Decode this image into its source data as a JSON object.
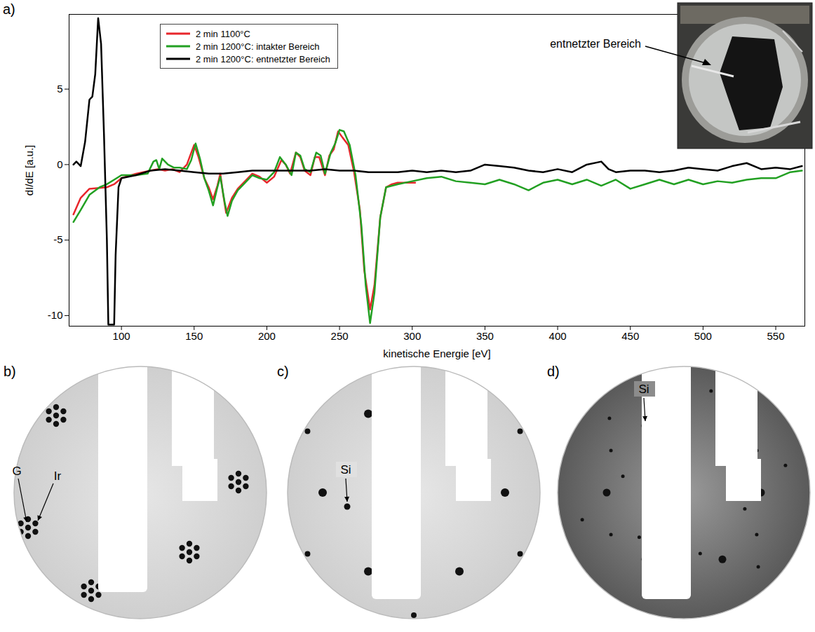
{
  "chart_data": {
    "type": "line",
    "panel": "a)",
    "x_label": "kinetische Energie [eV]",
    "y_label": "dI/dE [a.u.]",
    "xlim": [
      64,
      570
    ],
    "ylim": [
      -10.7,
      9.95
    ],
    "xticks": [
      100,
      150,
      200,
      250,
      300,
      350,
      400,
      450,
      500,
      550
    ],
    "yticks": [
      -10,
      -5,
      0,
      5
    ],
    "grid": false,
    "legend": "top-left",
    "series": [
      {
        "name": "2 min 1100°C",
        "color": "#e8262b",
        "x": [
          67,
          72,
          78,
          90,
          95,
          100,
          110,
          120,
          125,
          130,
          135,
          140,
          145,
          150,
          153,
          157,
          160,
          163,
          166,
          168,
          170,
          172,
          176,
          180,
          185,
          190,
          195,
          200,
          205,
          210,
          213,
          216,
          220,
          223,
          226,
          230,
          233,
          236,
          240,
          243,
          246,
          249,
          252,
          256,
          260,
          264,
          267,
          271,
          274,
          278,
          282,
          286,
          290,
          295,
          302
        ],
        "values": [
          -3.3,
          -2.2,
          -1.6,
          -1.5,
          -1.3,
          -0.9,
          -0.6,
          -0.4,
          -0.3,
          -0.4,
          -0.3,
          -0.5,
          0.0,
          1.3,
          0.5,
          -0.9,
          -1.5,
          -2.3,
          -1.4,
          -0.6,
          -2.0,
          -3.2,
          -2.2,
          -1.6,
          -1.1,
          -0.6,
          -0.8,
          -1.2,
          -0.8,
          0.3,
          0.0,
          -0.6,
          0.8,
          0.5,
          -0.4,
          -0.7,
          0.5,
          0.5,
          -0.7,
          0.6,
          1.0,
          2.2,
          1.8,
          1.3,
          -0.5,
          -3.0,
          -7.0,
          -9.6,
          -8.0,
          -3.5,
          -1.5,
          -1.3,
          -1.2,
          -1.2,
          -1.2
        ]
      },
      {
        "name": "2 min 1200°C: intakter Bereich",
        "color": "#22a022",
        "x": [
          67,
          72,
          78,
          85,
          90,
          95,
          100,
          110,
          118,
          122,
          124,
          126,
          128,
          132,
          136,
          140,
          145,
          148,
          151,
          154,
          157,
          160,
          163,
          166,
          168,
          171,
          173,
          176,
          180,
          185,
          190,
          195,
          200,
          205,
          209,
          213,
          217,
          220,
          223,
          226,
          230,
          234,
          237,
          240,
          244,
          247,
          250,
          253,
          257,
          261,
          265,
          268,
          271,
          274,
          278,
          282,
          290,
          300,
          310,
          320,
          330,
          340,
          350,
          360,
          370,
          380,
          390,
          400,
          410,
          420,
          430,
          440,
          450,
          460,
          470,
          480,
          490,
          500,
          510,
          520,
          530,
          540,
          550,
          560,
          568
        ],
        "values": [
          -3.8,
          -3.0,
          -2.0,
          -1.5,
          -1.3,
          -1.0,
          -0.7,
          -0.7,
          -0.6,
          0.2,
          0.3,
          -0.3,
          0.4,
          0.0,
          -0.2,
          -0.2,
          -0.3,
          0.3,
          1.4,
          0.4,
          -0.9,
          -1.7,
          -2.7,
          -1.5,
          -0.8,
          -2.5,
          -3.4,
          -2.4,
          -1.7,
          -1.2,
          -0.7,
          -0.9,
          -1.0,
          -0.5,
          0.5,
          0.0,
          -0.7,
          0.8,
          0.6,
          -0.3,
          -0.5,
          0.8,
          0.6,
          -0.6,
          0.8,
          1.4,
          2.3,
          2.2,
          1.3,
          -0.7,
          -4.0,
          -8.0,
          -10.5,
          -8.5,
          -3.5,
          -1.5,
          -1.3,
          -1.1,
          -0.9,
          -0.8,
          -1.1,
          -1.2,
          -1.3,
          -1.0,
          -1.3,
          -1.7,
          -1.2,
          -1.0,
          -1.3,
          -1.0,
          -1.4,
          -1.0,
          -1.6,
          -1.3,
          -1.0,
          -1.3,
          -1.0,
          -1.3,
          -1.1,
          -1.2,
          -1.0,
          -0.9,
          -0.9,
          -0.5,
          -0.4
        ]
      },
      {
        "name": "2 min 1200°C: entnetzter Bereich",
        "color": "#000000",
        "x": [
          67,
          69,
          72,
          75,
          78,
          80,
          82,
          84,
          86,
          88,
          90,
          91,
          95,
          96,
          98,
          100,
          110,
          120,
          130,
          140,
          150,
          160,
          170,
          180,
          190,
          200,
          210,
          220,
          230,
          240,
          250,
          260,
          270,
          280,
          290,
          300,
          310,
          320,
          330,
          340,
          350,
          360,
          370,
          380,
          390,
          400,
          410,
          420,
          430,
          435,
          440,
          450,
          460,
          470,
          480,
          490,
          500,
          510,
          520,
          530,
          540,
          550,
          560,
          568
        ],
        "values": [
          0.0,
          0.2,
          -0.1,
          1.5,
          4.3,
          4.5,
          6.0,
          9.7,
          8.0,
          2.0,
          -5.0,
          -10.6,
          -10.6,
          -6.0,
          -1.5,
          -0.9,
          -0.7,
          -0.4,
          -0.3,
          -0.4,
          -0.5,
          -0.6,
          -0.6,
          -0.5,
          -0.4,
          -0.4,
          -0.4,
          -0.4,
          -0.4,
          -0.3,
          -0.4,
          -0.4,
          -0.5,
          -0.5,
          -0.5,
          -0.4,
          -0.5,
          -0.4,
          -0.5,
          -0.4,
          0.0,
          -0.1,
          -0.2,
          -0.4,
          -0.5,
          -0.3,
          -0.5,
          0.0,
          0.2,
          -0.3,
          -0.5,
          -0.4,
          -0.4,
          -0.5,
          -0.4,
          -0.2,
          -0.3,
          -0.4,
          -0.1,
          0.1,
          -0.3,
          -0.2,
          -0.3,
          -0.1
        ]
      }
    ],
    "inset": {
      "annotation": "entnetzter Bereich"
    }
  },
  "panels": [
    {
      "letter": "b)",
      "labels": [
        "G",
        "Ir"
      ]
    },
    {
      "letter": "c)",
      "labels": [
        "Si"
      ]
    },
    {
      "letter": "d)",
      "labels": [
        "Si"
      ]
    }
  ]
}
